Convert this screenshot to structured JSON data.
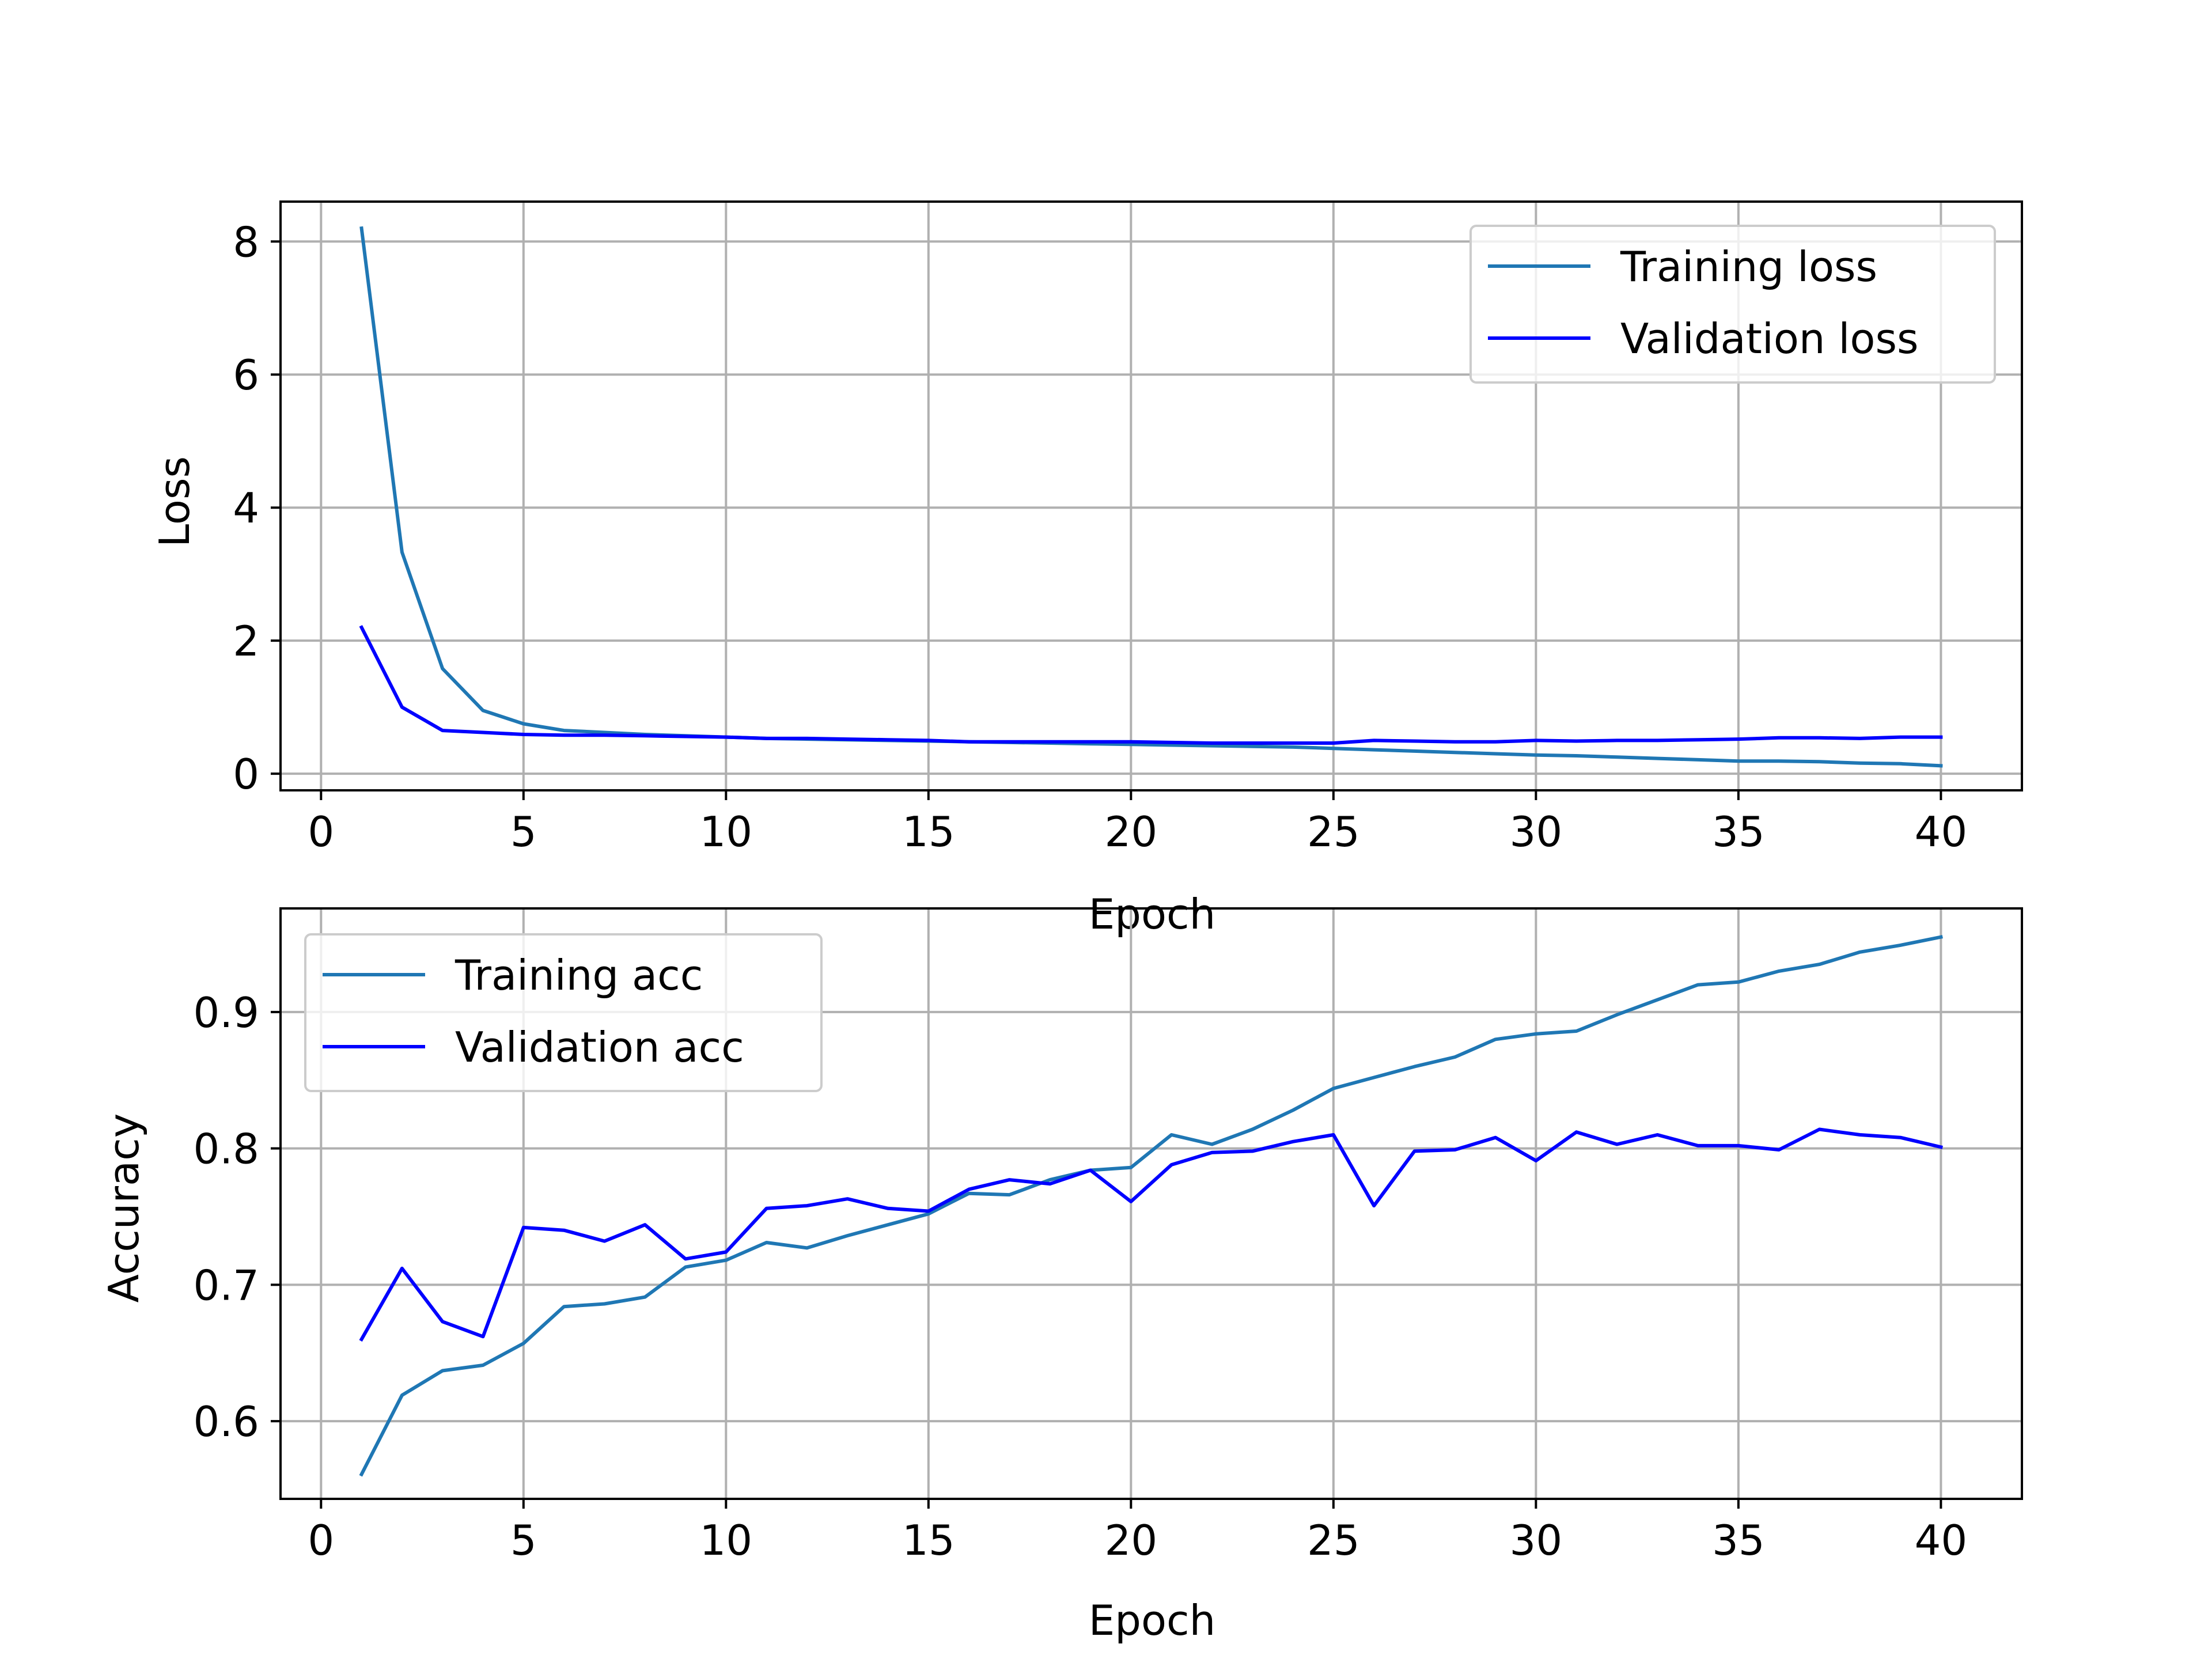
{
  "chart_data": [
    {
      "type": "line",
      "xlabel": "Epoch",
      "ylabel": "Loss",
      "xlim": [
        -1,
        42
      ],
      "ylim": [
        -0.25,
        8.6
      ],
      "xticks": [
        0,
        5,
        10,
        15,
        20,
        25,
        30,
        35,
        40
      ],
      "yticks": [
        0,
        2,
        4,
        6,
        8
      ],
      "grid": true,
      "legend_position": "top-right",
      "x": [
        1,
        2,
        3,
        4,
        5,
        6,
        7,
        8,
        9,
        10,
        11,
        12,
        13,
        14,
        15,
        16,
        17,
        18,
        19,
        20,
        21,
        22,
        23,
        24,
        25,
        26,
        27,
        28,
        29,
        30,
        31,
        32,
        33,
        34,
        35,
        36,
        37,
        38,
        39,
        40
      ],
      "series": [
        {
          "name": "Training loss",
          "color": "#1f77b4",
          "values": [
            8.2,
            3.33,
            1.58,
            0.95,
            0.75,
            0.65,
            0.62,
            0.59,
            0.57,
            0.55,
            0.53,
            0.52,
            0.51,
            0.5,
            0.49,
            0.48,
            0.47,
            0.46,
            0.45,
            0.44,
            0.43,
            0.42,
            0.41,
            0.4,
            0.38,
            0.36,
            0.34,
            0.32,
            0.3,
            0.28,
            0.27,
            0.25,
            0.23,
            0.21,
            0.19,
            0.19,
            0.18,
            0.16,
            0.15,
            0.12
          ]
        },
        {
          "name": "Validation loss",
          "color": "#0000ff",
          "values": [
            2.2,
            1.0,
            0.65,
            0.62,
            0.59,
            0.58,
            0.58,
            0.57,
            0.56,
            0.55,
            0.53,
            0.53,
            0.52,
            0.51,
            0.5,
            0.48,
            0.48,
            0.48,
            0.48,
            0.48,
            0.47,
            0.46,
            0.46,
            0.46,
            0.46,
            0.5,
            0.49,
            0.48,
            0.48,
            0.5,
            0.49,
            0.5,
            0.5,
            0.51,
            0.52,
            0.54,
            0.54,
            0.53,
            0.55,
            0.55
          ]
        }
      ]
    },
    {
      "type": "line",
      "xlabel": "Epoch",
      "ylabel": "Accuracy",
      "xlim": [
        -1,
        42
      ],
      "ylim": [
        0.543,
        0.976
      ],
      "xticks": [
        0,
        5,
        10,
        15,
        20,
        25,
        30,
        35,
        40
      ],
      "yticks": [
        0.6,
        0.7,
        0.8,
        0.9
      ],
      "grid": true,
      "legend_position": "top-left",
      "x": [
        1,
        2,
        3,
        4,
        5,
        6,
        7,
        8,
        9,
        10,
        11,
        12,
        13,
        14,
        15,
        16,
        17,
        18,
        19,
        20,
        21,
        22,
        23,
        24,
        25,
        26,
        27,
        28,
        29,
        30,
        31,
        32,
        33,
        34,
        35,
        36,
        37,
        38,
        39,
        40
      ],
      "series": [
        {
          "name": "Training acc",
          "color": "#1f77b4",
          "values": [
            0.561,
            0.619,
            0.637,
            0.641,
            0.657,
            0.684,
            0.686,
            0.691,
            0.713,
            0.718,
            0.731,
            0.727,
            0.736,
            0.744,
            0.752,
            0.767,
            0.766,
            0.777,
            0.784,
            0.786,
            0.81,
            0.803,
            0.814,
            0.828,
            0.844,
            0.852,
            0.86,
            0.867,
            0.88,
            0.884,
            0.886,
            0.898,
            0.909,
            0.92,
            0.922,
            0.93,
            0.935,
            0.944,
            0.949,
            0.955
          ]
        },
        {
          "name": "Validation acc",
          "color": "#0000ff",
          "values": [
            0.66,
            0.712,
            0.673,
            0.662,
            0.742,
            0.74,
            0.732,
            0.744,
            0.719,
            0.724,
            0.756,
            0.758,
            0.763,
            0.756,
            0.754,
            0.77,
            0.777,
            0.774,
            0.784,
            0.761,
            0.788,
            0.797,
            0.798,
            0.805,
            0.81,
            0.758,
            0.798,
            0.799,
            0.808,
            0.791,
            0.812,
            0.803,
            0.81,
            0.802,
            0.802,
            0.799,
            0.814,
            0.81,
            0.808,
            0.801
          ]
        }
      ]
    }
  ]
}
